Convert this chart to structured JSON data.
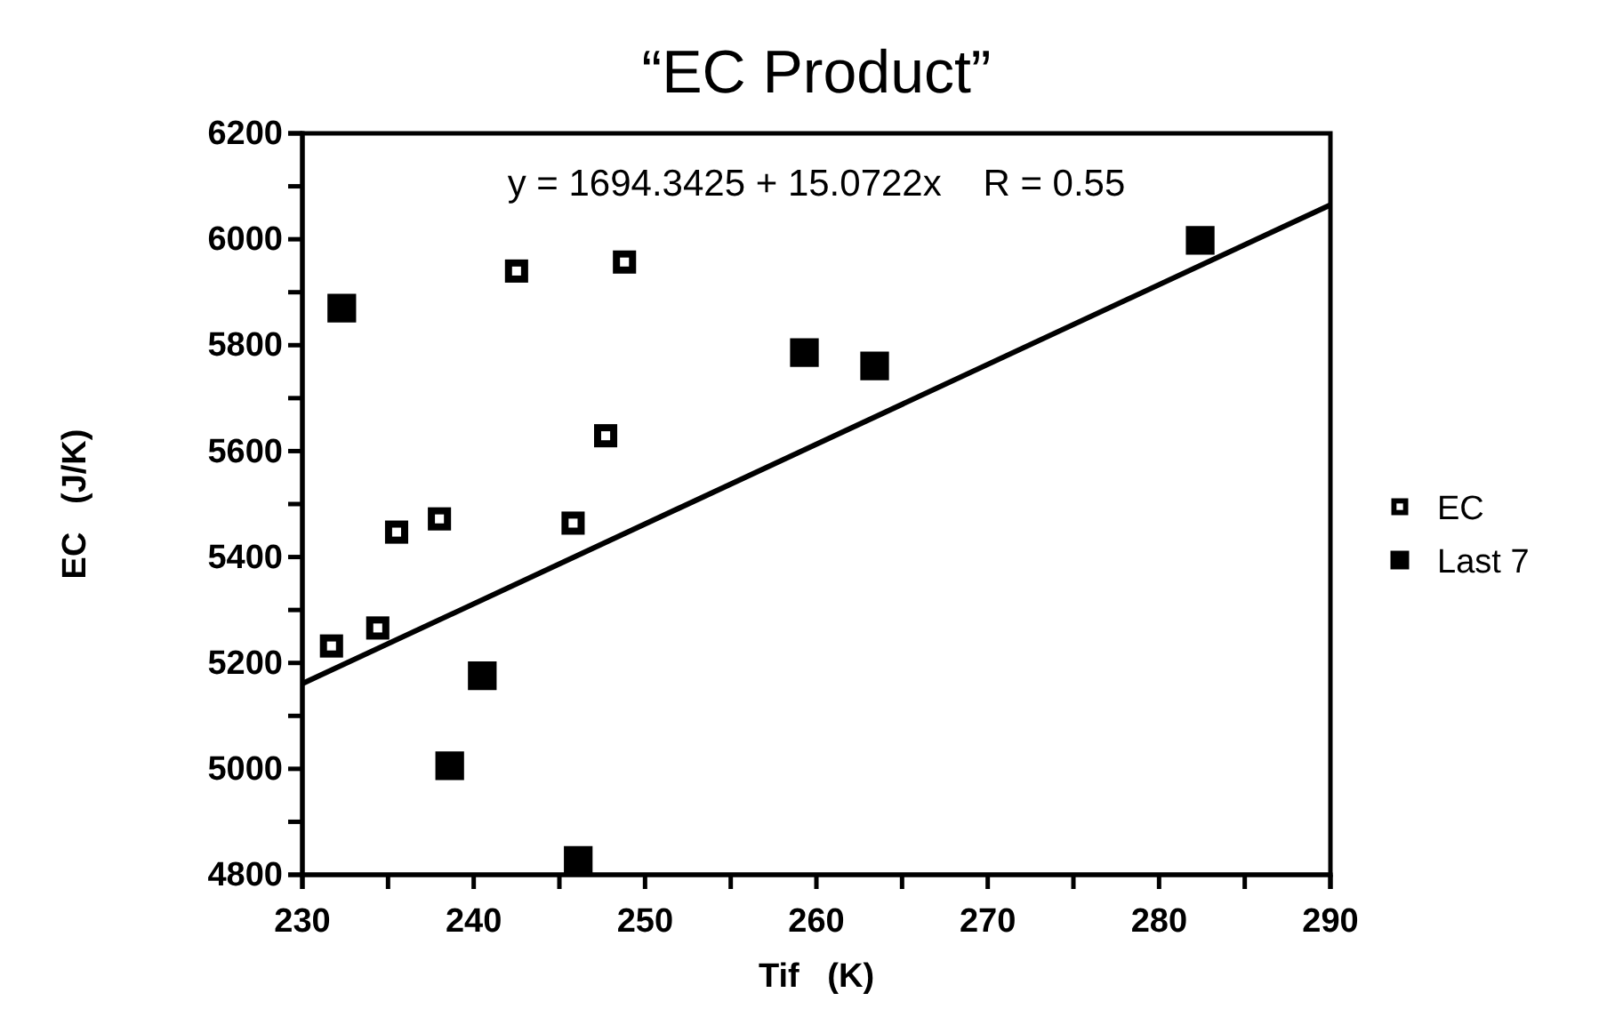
{
  "chart_data": {
    "type": "scatter",
    "title": "“EC Product”",
    "xlabel": "Tif   (K)",
    "ylabel": "EC   (J/K)",
    "xlim": [
      230,
      290
    ],
    "xticks": [
      230,
      {
        "value": 235,
        "label": null
      },
      240,
      {
        "value": 245,
        "label": null
      },
      250,
      {
        "value": 255,
        "label": null
      },
      260,
      {
        "value": 265,
        "label": null
      },
      270,
      {
        "value": 275,
        "label": null
      },
      280,
      {
        "value": 285,
        "label": null
      },
      290
    ],
    "ylim": [
      4800,
      6200
    ],
    "yticks": [
      4800,
      {
        "value": 4900,
        "label": null
      },
      5000,
      {
        "value": 5100,
        "label": null
      },
      5200,
      {
        "value": 5300,
        "label": null
      },
      5400,
      {
        "value": 5500,
        "label": null
      },
      5600,
      {
        "value": 5700,
        "label": null
      },
      5800,
      {
        "value": 5900,
        "label": null
      },
      6000,
      {
        "value": 6100,
        "label": null
      },
      6200
    ],
    "marker": "square",
    "legend": "right",
    "grid": false,
    "annotations": [
      "y = 1694.3425 + 15.0722x    R = 0.55"
    ],
    "series": [
      {
        "name": "EC",
        "color": "#000000",
        "x": [
          231.7,
          234.4,
          235.5,
          238.0,
          242.5,
          248.8,
          247.7,
          245.8
        ],
        "values": [
          5232,
          5266,
          5447,
          5472,
          5940,
          5957,
          5629,
          5464
        ]
      },
      {
        "name": "Last 7",
        "color": "#000000",
        "x": [
          232.3,
          240.5,
          238.6,
          246.1,
          259.3,
          263.4,
          282.4
        ],
        "values": [
          5870,
          5176,
          5006,
          4827,
          5786,
          5761,
          5998
        ]
      },
      {
        "type": "line",
        "marker": "none",
        "color": "#000000",
        "x": [
          230,
          290
        ],
        "values": [
          5161,
          6065
        ]
      }
    ]
  }
}
